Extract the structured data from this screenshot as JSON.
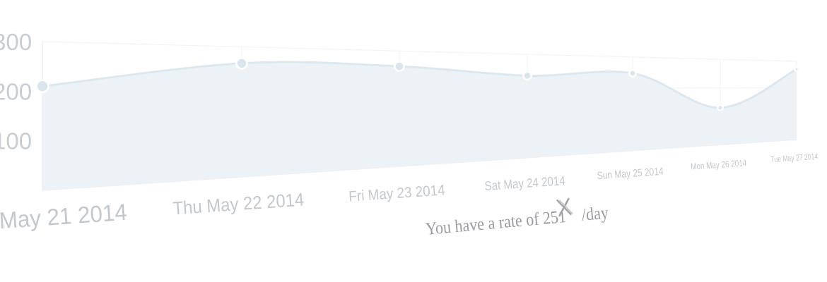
{
  "chart_data": {
    "type": "area",
    "title": "",
    "xlabel": "",
    "ylabel": "",
    "categories": [
      "May 21 2014",
      "Thu May 22 2014",
      "Fri May 23 2014",
      "Sat May 24 2014",
      "Sun May 25 2014",
      "Mon May 26 2014",
      "Tue May 27 2014"
    ],
    "series": [
      {
        "values": [
          210,
          262,
          260,
          238,
          248,
          130,
          270
        ]
      }
    ],
    "ylim": [
      0,
      300
    ],
    "yticks": [
      "100",
      "200",
      "300"
    ],
    "grid": true,
    "legend": "none",
    "perspective": "tilted",
    "colors": {
      "area": "#eaf1f5",
      "line": "#dde8ee",
      "point": "#dbe6ec",
      "tick_text": "#c4c8cc"
    }
  },
  "caption": {
    "text_before": "You have a rate of 251",
    "cursor_icon": "x-icon",
    "text_after": "/day"
  }
}
